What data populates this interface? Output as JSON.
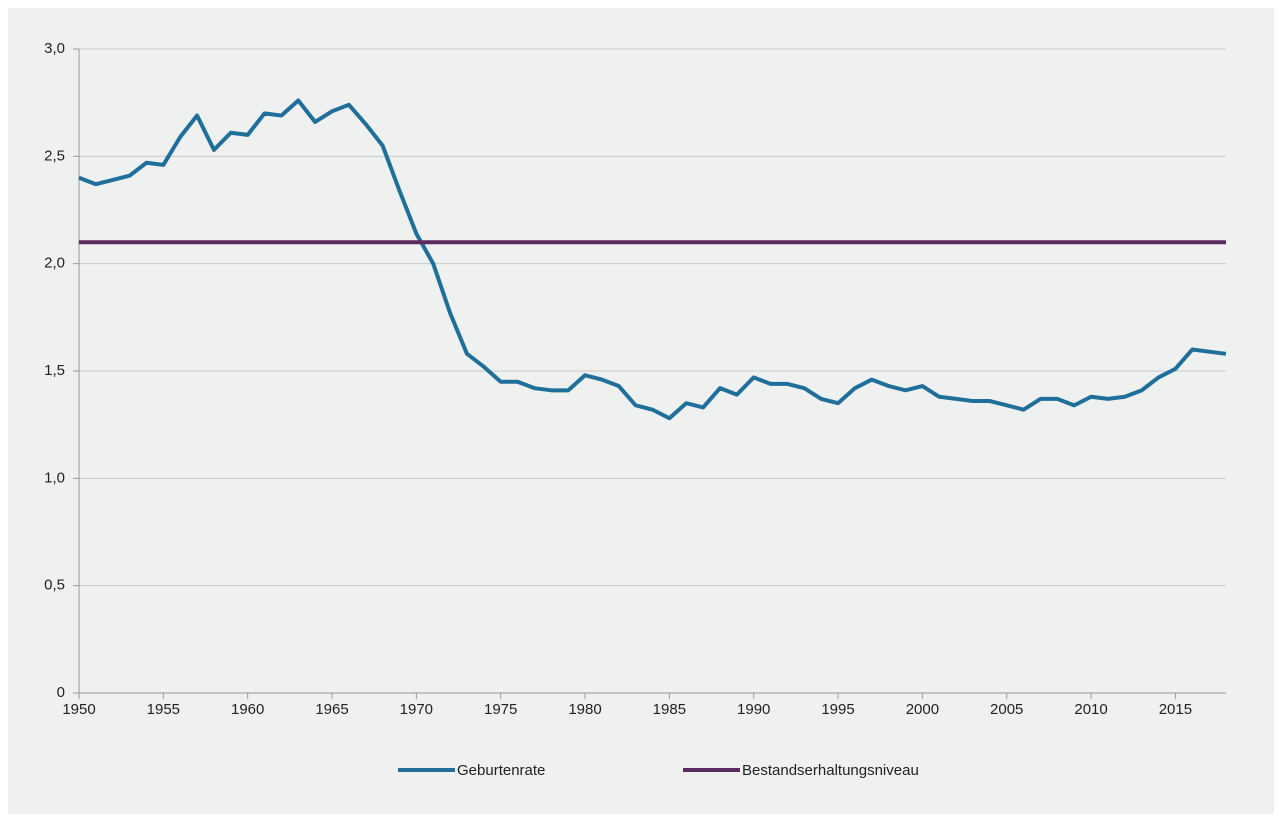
{
  "chart_data": {
    "type": "line",
    "x": [
      1950,
      1951,
      1952,
      1953,
      1954,
      1955,
      1956,
      1957,
      1958,
      1959,
      1960,
      1961,
      1962,
      1963,
      1964,
      1965,
      1966,
      1967,
      1968,
      1969,
      1970,
      1971,
      1972,
      1973,
      1974,
      1975,
      1976,
      1977,
      1978,
      1979,
      1980,
      1981,
      1982,
      1983,
      1984,
      1985,
      1986,
      1987,
      1988,
      1989,
      1990,
      1991,
      1992,
      1993,
      1994,
      1995,
      1996,
      1997,
      1998,
      1999,
      2000,
      2001,
      2002,
      2003,
      2004,
      2005,
      2006,
      2007,
      2008,
      2009,
      2010,
      2011,
      2012,
      2013,
      2014,
      2015,
      2016,
      2017,
      2018
    ],
    "series": [
      {
        "name": "Geburtenrate",
        "color": "#1f6f9a",
        "values": [
          2.4,
          2.37,
          2.39,
          2.41,
          2.47,
          2.46,
          2.59,
          2.69,
          2.53,
          2.61,
          2.6,
          2.7,
          2.69,
          2.76,
          2.66,
          2.71,
          2.74,
          2.65,
          2.55,
          2.34,
          2.14,
          2.0,
          1.77,
          1.58,
          1.52,
          1.45,
          1.45,
          1.42,
          1.41,
          1.41,
          1.48,
          1.46,
          1.43,
          1.34,
          1.32,
          1.28,
          1.35,
          1.33,
          1.42,
          1.39,
          1.47,
          1.44,
          1.44,
          1.42,
          1.37,
          1.35,
          1.42,
          1.46,
          1.43,
          1.41,
          1.43,
          1.38,
          1.37,
          1.36,
          1.36,
          1.34,
          1.32,
          1.37,
          1.37,
          1.34,
          1.38,
          1.37,
          1.38,
          1.41,
          1.47,
          1.51,
          1.6,
          1.59,
          1.58
        ]
      },
      {
        "name": "Bestandserhaltungsniveau",
        "color": "#5b2a5e",
        "values": [
          2.1,
          2.1,
          2.1,
          2.1,
          2.1,
          2.1,
          2.1,
          2.1,
          2.1,
          2.1,
          2.1,
          2.1,
          2.1,
          2.1,
          2.1,
          2.1,
          2.1,
          2.1,
          2.1,
          2.1,
          2.1,
          2.1,
          2.1,
          2.1,
          2.1,
          2.1,
          2.1,
          2.1,
          2.1,
          2.1,
          2.1,
          2.1,
          2.1,
          2.1,
          2.1,
          2.1,
          2.1,
          2.1,
          2.1,
          2.1,
          2.1,
          2.1,
          2.1,
          2.1,
          2.1,
          2.1,
          2.1,
          2.1,
          2.1,
          2.1,
          2.1,
          2.1,
          2.1,
          2.1,
          2.1,
          2.1,
          2.1,
          2.1,
          2.1,
          2.1,
          2.1,
          2.1,
          2.1,
          2.1,
          2.1,
          2.1,
          2.1,
          2.1,
          2.1
        ]
      }
    ],
    "xlim": [
      1950,
      2018
    ],
    "xticks": [
      1950,
      1955,
      1960,
      1965,
      1970,
      1975,
      1980,
      1985,
      1990,
      1995,
      2000,
      2005,
      2010,
      2015
    ],
    "ylim": [
      0,
      3
    ],
    "yticks": [
      0,
      {
        "value": 0.5,
        "label": "0,5"
      },
      {
        "value": 1,
        "label": "1,0"
      },
      {
        "value": 1.5,
        "label": "1,5"
      },
      {
        "value": 2,
        "label": "2,0"
      },
      {
        "value": 2.5,
        "label": "2,5"
      },
      {
        "value": 3,
        "label": "3,0"
      }
    ],
    "grid": true
  }
}
